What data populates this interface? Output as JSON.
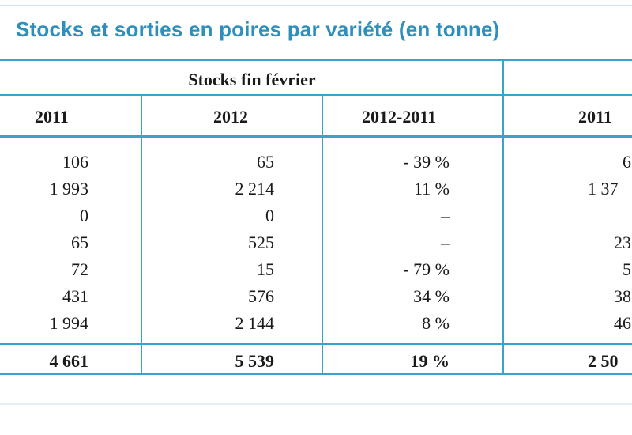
{
  "title": "Stocks et sorties en poires par variété (en tonne)",
  "group_header": "Stocks fin février",
  "columns": [
    "2011",
    "2012",
    "2012-2011",
    "2011"
  ],
  "rows": [
    {
      "c2011": "106",
      "c2012": "65",
      "diff": "- 39 %",
      "c2011b": "6"
    },
    {
      "c2011": "1 993",
      "c2012": "2 214",
      "diff": "11 %",
      "c2011b": "1 37"
    },
    {
      "c2011": "0",
      "c2012": "0",
      "diff": "–",
      "c2011b": ""
    },
    {
      "c2011": "65",
      "c2012": "525",
      "diff": "–",
      "c2011b": "23"
    },
    {
      "c2011": "72",
      "c2012": "15",
      "diff": "- 79 %",
      "c2011b": "5"
    },
    {
      "c2011": "431",
      "c2012": "576",
      "diff": "34 %",
      "c2011b": "38"
    },
    {
      "c2011": "1 994",
      "c2012": "2 144",
      "diff": "8 %",
      "c2011b": "46"
    }
  ],
  "total": {
    "c2011": "4 661",
    "c2012": "5 539",
    "diff": "19 %",
    "c2011b": "2 50"
  },
  "colors": {
    "accent": "#2e8fbd",
    "rule": "#3aa3cc"
  }
}
